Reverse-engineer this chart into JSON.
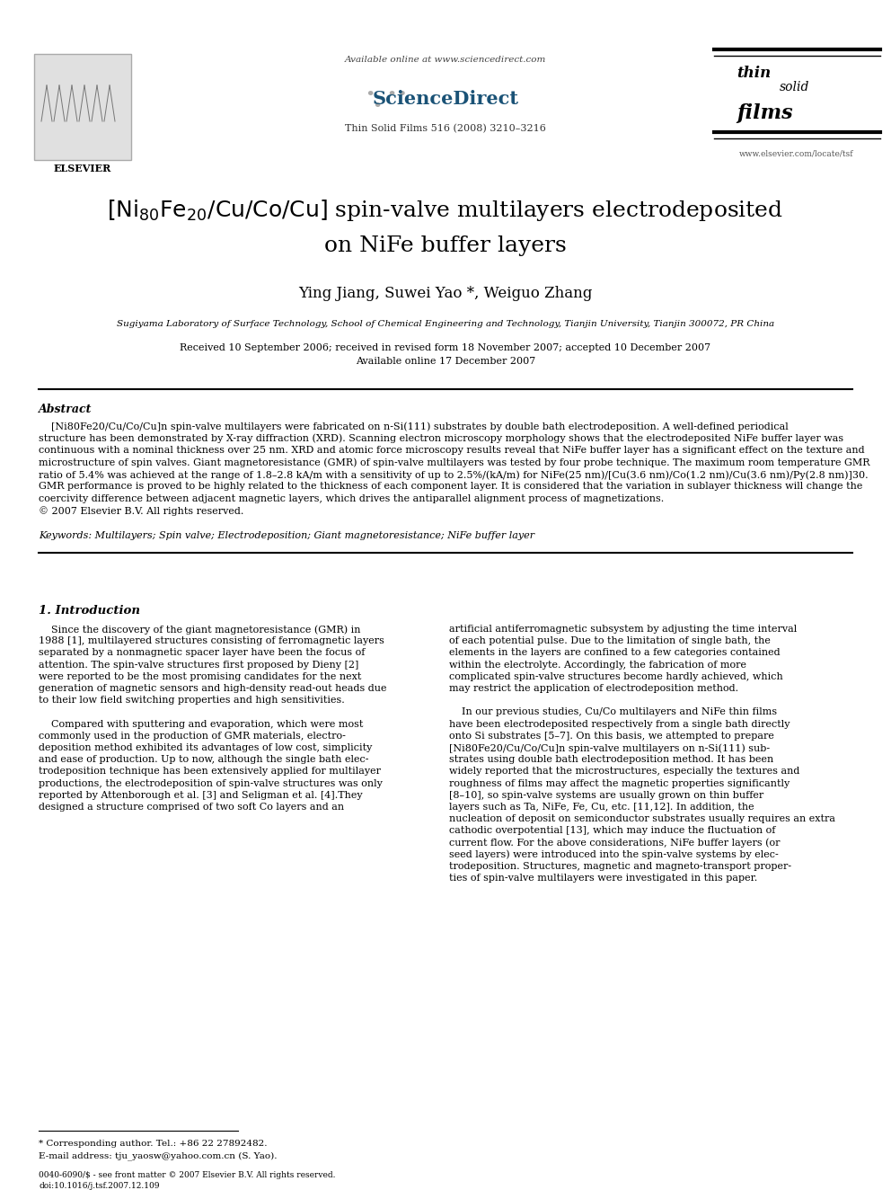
{
  "background_color": "#ffffff",
  "available_online": "Available online at www.sciencedirect.com",
  "journal_info": "Thin Solid Films 516 (2008) 3210–3216",
  "website": "www.elsevier.com/locate/tsf",
  "authors": "Ying Jiang, Suwei Yao *, Weiguo Zhang",
  "affiliation": "Sugiyama Laboratory of Surface Technology, School of Chemical Engineering and Technology, Tianjin University, Tianjin 300072, PR China",
  "received": "Received 10 September 2006; received in revised form 18 November 2007; accepted 10 December 2007",
  "available": "Available online 17 December 2007",
  "keywords": "Keywords: Multilayers; Spin valve; Electrodeposition; Giant magnetoresistance; NiFe buffer layer",
  "footnote_corresponding": "* Corresponding author. Tel.: +86 22 27892482.",
  "footnote_email": "E-mail address: tju_yaosw@yahoo.com.cn (S. Yao).",
  "footer_left": "0040-6090/$ - see front matter © 2007 Elsevier B.V. All rights reserved.",
  "footer_doi": "doi:10.1016/j.tsf.2007.12.109",
  "abs_lines": [
    "    [Ni80Fe20/Cu/Co/Cu]n spin-valve multilayers were fabricated on n-Si(111) substrates by double bath electrodeposition. A well-defined periodical",
    "structure has been demonstrated by X-ray diffraction (XRD). Scanning electron microscopy morphology shows that the electrodeposited NiFe buffer layer was",
    "continuous with a nominal thickness over 25 nm. XRD and atomic force microscopy results reveal that NiFe buffer layer has a significant effect on the texture and",
    "microstructure of spin valves. Giant magnetoresistance (GMR) of spin-valve multilayers was tested by four probe technique. The maximum room temperature GMR",
    "ratio of 5.4% was achieved at the range of 1.8–2.8 kA/m with a sensitivity of up to 2.5%/(kA/m) for NiFe(25 nm)/[Cu(3.6 nm)/Co(1.2 nm)/Cu(3.6 nm)/Py(2.8 nm)]30.",
    "GMR performance is proved to be highly related to the thickness of each component layer. It is considered that the variation in sublayer thickness will change the",
    "coercivity difference between adjacent magnetic layers, which drives the antiparallel alignment process of magnetizations.",
    "© 2007 Elsevier B.V. All rights reserved."
  ],
  "col1_lines": [
    "    Since the discovery of the giant magnetoresistance (GMR) in",
    "1988 [1], multilayered structures consisting of ferromagnetic layers",
    "separated by a nonmagnetic spacer layer have been the focus of",
    "attention. The spin-valve structures first proposed by Dieny [2]",
    "were reported to be the most promising candidates for the next",
    "generation of magnetic sensors and high-density read-out heads due",
    "to their low field switching properties and high sensitivities.",
    "",
    "    Compared with sputtering and evaporation, which were most",
    "commonly used in the production of GMR materials, electro-",
    "deposition method exhibited its advantages of low cost, simplicity",
    "and ease of production. Up to now, although the single bath elec-",
    "trodeposition technique has been extensively applied for multilayer",
    "productions, the electrodeposition of spin-valve structures was only",
    "reported by Attenborough et al. [3] and Seligman et al. [4].They",
    "designed a structure comprised of two soft Co layers and an"
  ],
  "col2_lines": [
    "artificial antiferromagnetic subsystem by adjusting the time interval",
    "of each potential pulse. Due to the limitation of single bath, the",
    "elements in the layers are confined to a few categories contained",
    "within the electrolyte. Accordingly, the fabrication of more",
    "complicated spin-valve structures become hardly achieved, which",
    "may restrict the application of electrodeposition method.",
    "",
    "    In our previous studies, Cu/Co multilayers and NiFe thin films",
    "have been electrodeposited respectively from a single bath directly",
    "onto Si substrates [5–7]. On this basis, we attempted to prepare",
    "[Ni80Fe20/Cu/Co/Cu]n spin-valve multilayers on n-Si(111) sub-",
    "strates using double bath electrodeposition method. It has been",
    "widely reported that the microstructures, especially the textures and",
    "roughness of films may affect the magnetic properties significantly",
    "[8–10], so spin-valve systems are usually grown on thin buffer",
    "layers such as Ta, NiFe, Fe, Cu, etc. [11,12]. In addition, the",
    "nucleation of deposit on semiconductor substrates usually requires an extra",
    "cathodic overpotential [13], which may induce the fluctuation of",
    "current flow. For the above considerations, NiFe buffer layers (or",
    "seed layers) were introduced into the spin-valve systems by elec-",
    "trodeposition. Structures, magnetic and magneto-transport proper-",
    "ties of spin-valve multilayers were investigated in this paper."
  ]
}
